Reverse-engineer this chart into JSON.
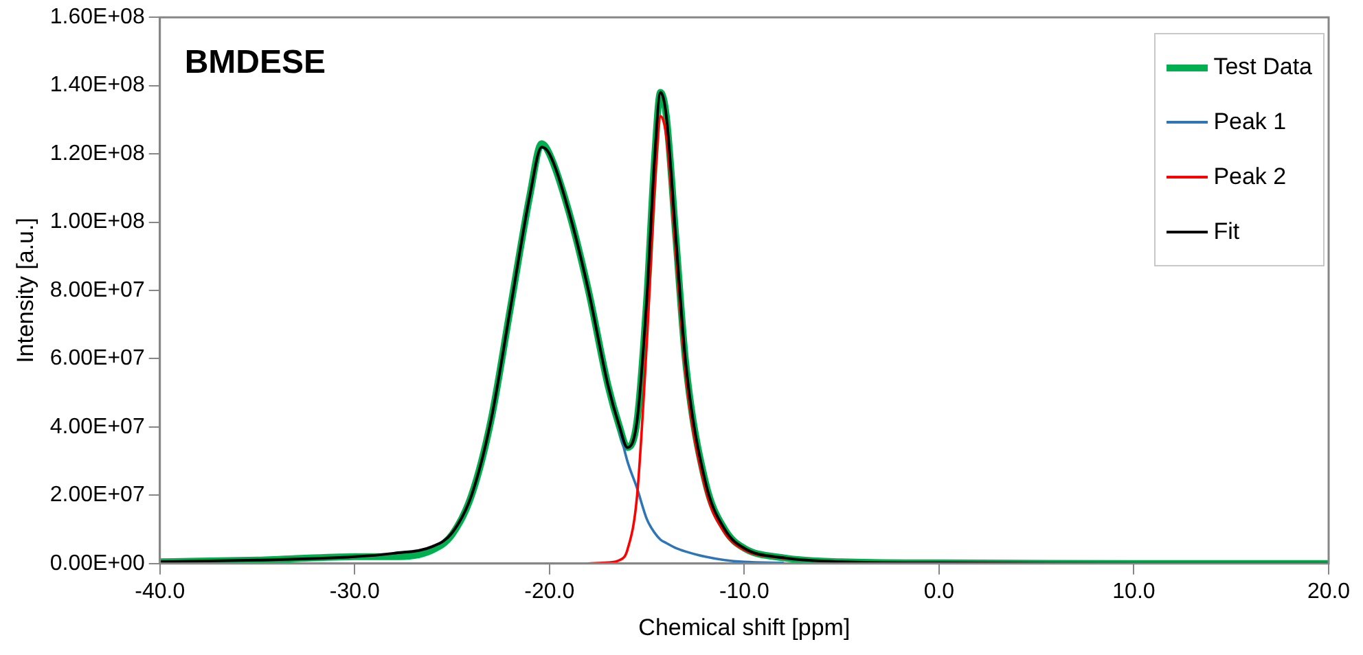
{
  "chart_data": {
    "type": "line",
    "title": "BMDESE",
    "xlabel": "Chemical shift [ppm]",
    "ylabel": "Intensity [a.u.]",
    "x": [
      -40,
      -35,
      -30,
      -28,
      -26,
      -25,
      -24,
      -23,
      -22,
      -21,
      -20.4,
      -20,
      -19,
      -18,
      -17,
      -16.4,
      -16,
      -15.5,
      -15,
      -14.6,
      -14.3,
      -14,
      -13.5,
      -13,
      -12,
      -11,
      -10,
      -8,
      -5,
      0,
      10,
      20
    ],
    "series": [
      {
        "name": "Test Data",
        "color": "#00b050",
        "values": [
          500000,
          1000000,
          2000000,
          2000000,
          4000000,
          8500000,
          20000000,
          42000000,
          75000000,
          108000000,
          123000000,
          120000000,
          103000000,
          80000000,
          52300000,
          40000000,
          34000000,
          42000000,
          78000000,
          119000000,
          138000000,
          131000000,
          94500000,
          58500000,
          24000000,
          10000000,
          4500000,
          1700000,
          500000,
          200000,
          0,
          0
        ]
      },
      {
        "name": "Peak 1",
        "color": "#2e75b6",
        "values": [
          null,
          null,
          null,
          null,
          null,
          null,
          null,
          null,
          null,
          null,
          null,
          null,
          null,
          null,
          null,
          39000000,
          30000000,
          22000000,
          13000000,
          9000000,
          7000000,
          6000000,
          4500000,
          3500000,
          2000000,
          1000000,
          500000,
          200000,
          null,
          null,
          null,
          null
        ]
      },
      {
        "name": "Peak 2",
        "color": "#ff0000",
        "values": [
          null,
          null,
          null,
          null,
          null,
          null,
          null,
          null,
          null,
          null,
          null,
          null,
          null,
          0,
          300000,
          1000000,
          4000000,
          20000000,
          65000000,
          110000000,
          131000000,
          125000000,
          90000000,
          55000000,
          22000000,
          9000000,
          4000000,
          1500000,
          null,
          null,
          null,
          null
        ]
      },
      {
        "name": "Fit",
        "color": "#000000",
        "values": [
          500000,
          1000000,
          2000000,
          3000000,
          5000000,
          9000000,
          20000000,
          42000000,
          75000000,
          108000000,
          122000000,
          120000000,
          103000000,
          80000000,
          52300000,
          40000000,
          34000000,
          42000000,
          78000000,
          119000000,
          138000000,
          131000000,
          94500000,
          58500000,
          24000000,
          10000000,
          4500000,
          1700000,
          500000,
          200000,
          0,
          0
        ]
      }
    ],
    "xlim": [
      -40,
      20
    ],
    "xticks": [
      {
        "value": -40,
        "label": "-40.0"
      },
      {
        "value": -30,
        "label": "-30.0"
      },
      {
        "value": -20,
        "label": "-20.0"
      },
      {
        "value": -10,
        "label": "-10.0"
      },
      {
        "value": 0,
        "label": "0.0"
      },
      {
        "value": 10,
        "label": "10.0"
      },
      {
        "value": 20,
        "label": "20.0"
      }
    ],
    "ylim": [
      0,
      160000000
    ],
    "yticks": [
      {
        "value": 0,
        "label": "0.00E+00"
      },
      {
        "value": 20000000,
        "label": "2.00E+07"
      },
      {
        "value": 40000000,
        "label": "4.00E+07"
      },
      {
        "value": 60000000,
        "label": "6.00E+07"
      },
      {
        "value": 80000000,
        "label": "8.00E+07"
      },
      {
        "value": 100000000,
        "label": "1.00E+08"
      },
      {
        "value": 120000000,
        "label": "1.20E+08"
      },
      {
        "value": 140000000,
        "label": "1.40E+08"
      },
      {
        "value": 160000000,
        "label": "1.60E+08"
      }
    ],
    "grid": false,
    "legend": "top right",
    "marker": "none",
    "line_style": "solid"
  }
}
